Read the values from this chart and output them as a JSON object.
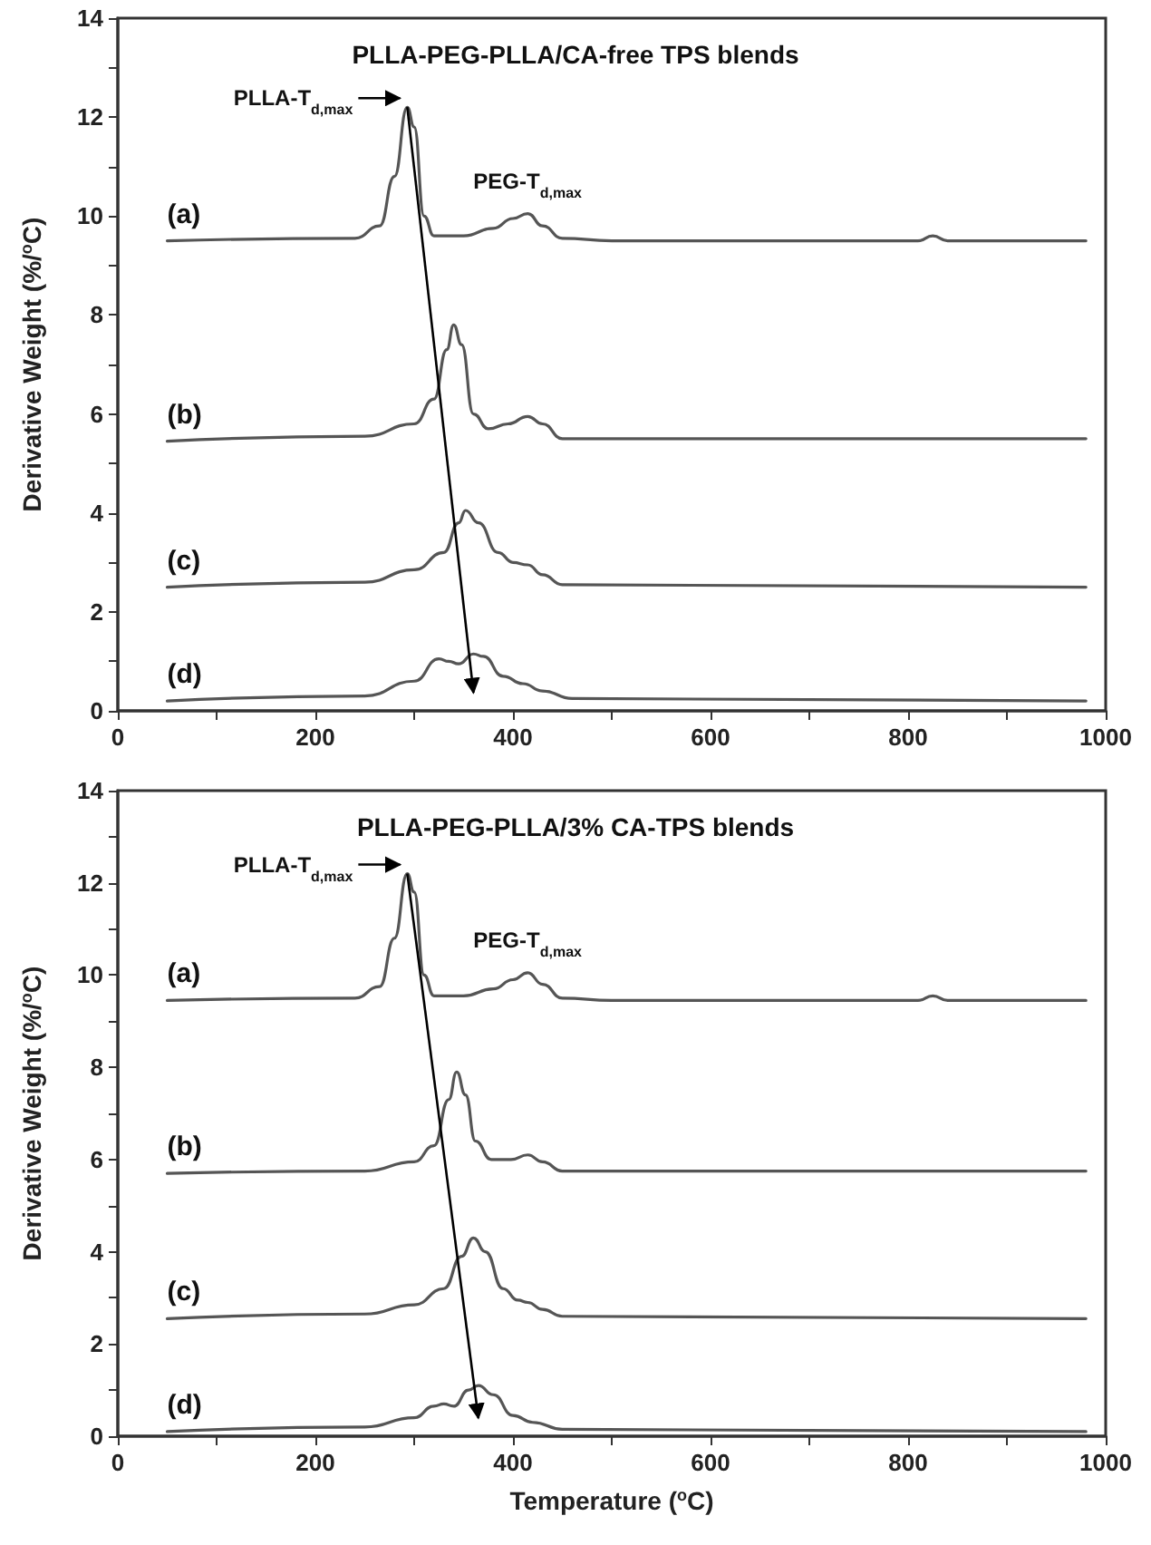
{
  "chart_data": [
    {
      "type": "line",
      "title": "PLLA-PEG-PLLA/CA-free TPS blends",
      "ylabel": "Derivative Weight (%/$^{o}$C)",
      "marker": "none",
      "line_style": "solid",
      "grid": false,
      "legend": false,
      "xlim": [
        0,
        1000
      ],
      "xticks": [
        0,
        {
          "value": 100,
          "label": null
        },
        200,
        {
          "value": 300,
          "label": null
        },
        400,
        {
          "value": 500,
          "label": null
        },
        600,
        {
          "value": 700,
          "label": null
        },
        800,
        {
          "value": 900,
          "label": null
        },
        1000
      ],
      "ylim": [
        0,
        14
      ],
      "yticks": [
        0,
        {
          "value": 1,
          "label": null
        },
        2,
        {
          "value": 3,
          "label": null
        },
        4,
        {
          "value": 5,
          "label": null
        },
        6,
        {
          "value": 7,
          "label": null
        },
        8,
        {
          "value": 9,
          "label": null
        },
        10,
        {
          "value": 11,
          "label": null
        },
        12,
        {
          "value": 13,
          "label": null
        },
        14
      ],
      "annotations": [
        "PLLA-T$_{d,max}$",
        "PEG-T$_{d,max}$"
      ],
      "series": [
        {
          "name": "(a)",
          "color": "#555555",
          "x": [
            50,
            240,
            265,
            280,
            293,
            300,
            310,
            320,
            350,
            380,
            400,
            415,
            430,
            450,
            500,
            810,
            825,
            840,
            980
          ],
          "values": [
            9.5,
            9.55,
            9.8,
            10.8,
            12.2,
            11.8,
            10.0,
            9.6,
            9.6,
            9.75,
            9.95,
            10.05,
            9.8,
            9.55,
            9.5,
            9.5,
            9.6,
            9.5,
            9.5
          ]
        },
        {
          "name": "(b)",
          "color": "#555555",
          "x": [
            50,
            250,
            300,
            320,
            333,
            340,
            348,
            360,
            375,
            395,
            415,
            430,
            450,
            980
          ],
          "values": [
            5.45,
            5.55,
            5.8,
            6.3,
            7.3,
            7.8,
            7.4,
            6.0,
            5.7,
            5.8,
            5.95,
            5.8,
            5.5,
            5.5
          ]
        },
        {
          "name": "(c)",
          "color": "#555555",
          "x": [
            50,
            250,
            300,
            330,
            345,
            352,
            365,
            385,
            400,
            415,
            430,
            450,
            980
          ],
          "values": [
            2.5,
            2.6,
            2.85,
            3.2,
            3.8,
            4.05,
            3.8,
            3.2,
            3.0,
            2.95,
            2.75,
            2.55,
            2.5
          ]
        },
        {
          "name": "(d)",
          "color": "#555555",
          "x": [
            50,
            250,
            300,
            325,
            335,
            345,
            360,
            370,
            390,
            410,
            430,
            460,
            980
          ],
          "values": [
            0.2,
            0.3,
            0.6,
            1.05,
            1.0,
            0.95,
            1.15,
            1.1,
            0.7,
            0.55,
            0.4,
            0.25,
            0.2
          ]
        }
      ]
    },
    {
      "type": "line",
      "title": "PLLA-PEG-PLLA/3% CA-TPS blends",
      "xlabel": "Temperature ($^{o}$C)",
      "ylabel": "Derivative Weight (%/$^{o}$C)",
      "marker": "none",
      "line_style": "solid",
      "grid": false,
      "legend": false,
      "xlim": [
        0,
        1000
      ],
      "xticks": [
        0,
        {
          "value": 100,
          "label": null
        },
        200,
        {
          "value": 300,
          "label": null
        },
        400,
        {
          "value": 500,
          "label": null
        },
        600,
        {
          "value": 700,
          "label": null
        },
        800,
        {
          "value": 900,
          "label": null
        },
        1000
      ],
      "ylim": [
        0,
        14
      ],
      "yticks": [
        0,
        {
          "value": 1,
          "label": null
        },
        2,
        {
          "value": 3,
          "label": null
        },
        4,
        {
          "value": 5,
          "label": null
        },
        6,
        {
          "value": 7,
          "label": null
        },
        8,
        {
          "value": 9,
          "label": null
        },
        10,
        {
          "value": 11,
          "label": null
        },
        12,
        {
          "value": 13,
          "label": null
        },
        14
      ],
      "annotations": [
        "PLLA-T$_{d,max}$",
        "PEG-T$_{d,max}$"
      ],
      "series": [
        {
          "name": "(a)",
          "color": "#555555",
          "x": [
            50,
            240,
            265,
            280,
            293,
            300,
            310,
            320,
            350,
            380,
            400,
            415,
            430,
            450,
            500,
            810,
            825,
            840,
            980
          ],
          "values": [
            9.45,
            9.5,
            9.75,
            10.8,
            12.2,
            11.8,
            10.0,
            9.55,
            9.55,
            9.7,
            9.9,
            10.05,
            9.8,
            9.5,
            9.45,
            9.45,
            9.55,
            9.45,
            9.45
          ]
        },
        {
          "name": "(b)",
          "color": "#555555",
          "x": [
            50,
            250,
            300,
            320,
            335,
            343,
            352,
            362,
            378,
            398,
            415,
            430,
            450,
            980
          ],
          "values": [
            5.7,
            5.75,
            5.95,
            6.3,
            7.3,
            7.9,
            7.4,
            6.4,
            6.0,
            6.0,
            6.1,
            5.95,
            5.75,
            5.75
          ]
        },
        {
          "name": "(c)",
          "color": "#555555",
          "x": [
            50,
            250,
            300,
            330,
            348,
            360,
            372,
            390,
            405,
            415,
            430,
            450,
            980
          ],
          "values": [
            2.55,
            2.65,
            2.85,
            3.2,
            3.9,
            4.3,
            4.0,
            3.2,
            2.95,
            2.9,
            2.75,
            2.6,
            2.55
          ]
        },
        {
          "name": "(d)",
          "color": "#555555",
          "x": [
            50,
            250,
            300,
            320,
            330,
            340,
            355,
            365,
            380,
            400,
            420,
            450,
            980
          ],
          "values": [
            0.1,
            0.2,
            0.4,
            0.65,
            0.7,
            0.65,
            1.0,
            1.1,
            0.9,
            0.45,
            0.3,
            0.15,
            0.1
          ]
        }
      ]
    }
  ]
}
